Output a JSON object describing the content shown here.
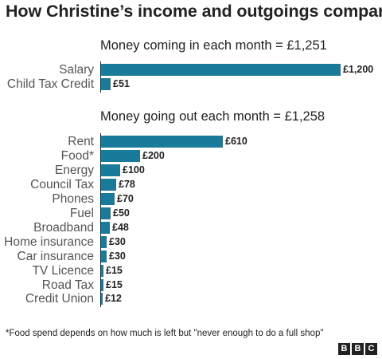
{
  "title": "How Christine’s income and outgoings compare",
  "footnote": "*Food spend depends on how much is left but \"never enough to do a full shop\"",
  "logo": [
    "B",
    "B",
    "C"
  ],
  "colors": {
    "bar": "#1a7a9a",
    "text": "#222222",
    "label": "#555555"
  },
  "chart_data": [
    {
      "type": "bar",
      "orientation": "horizontal",
      "title": "Money coming in each month = £1,251",
      "categories": [
        "Salary",
        "Child Tax Credit"
      ],
      "values": [
        1200,
        51
      ],
      "value_labels": [
        "£1,200",
        "£51"
      ],
      "xlim": [
        0,
        1200
      ]
    },
    {
      "type": "bar",
      "orientation": "horizontal",
      "title": "Money going out each month = £1,258",
      "categories": [
        "Rent",
        "Food*",
        "Energy",
        "Council Tax",
        "Phones",
        "Fuel",
        "Broadband",
        "Home insurance",
        "Car insurance",
        "TV Licence",
        "Road Tax",
        "Credit Union"
      ],
      "values": [
        610,
        200,
        100,
        78,
        70,
        50,
        48,
        30,
        30,
        15,
        15,
        12
      ],
      "value_labels": [
        "£610",
        "£200",
        "£100",
        "£78",
        "£70",
        "£50",
        "£48",
        "£30",
        "£30",
        "£15",
        "£15",
        "£12"
      ],
      "xlim": [
        0,
        1200
      ]
    }
  ]
}
